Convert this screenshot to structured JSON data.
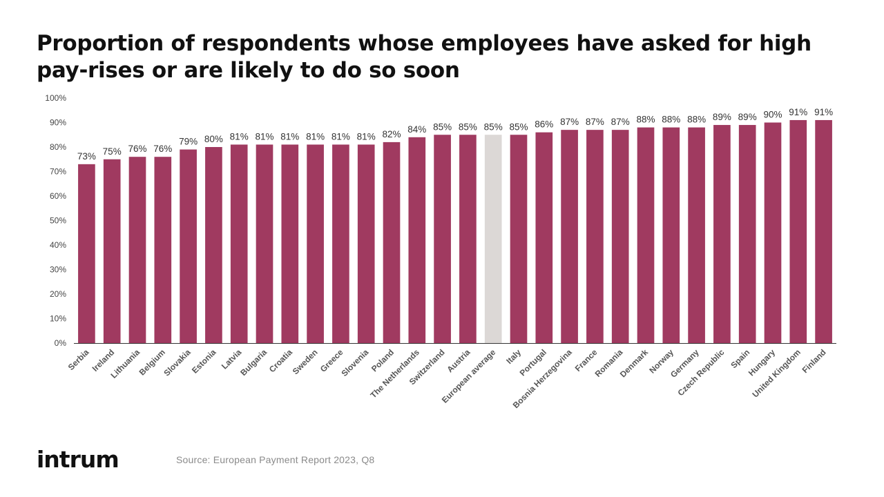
{
  "title": "Proportion of respondents whose employees have asked for high pay-rises or are likely to do so soon",
  "logo": "intrum",
  "source": "Source: European Payment Report 2023, Q8",
  "colors": {
    "bar": "#A03A60",
    "highlight": "#DCD8D6",
    "text": "#333333",
    "axis": "#333333"
  },
  "chart_data": {
    "type": "bar",
    "title": "Proportion of respondents whose employees have asked for high pay-rises or are likely to do so soon",
    "xlabel": "",
    "ylabel": "",
    "ylim": [
      0,
      100
    ],
    "yticks": [
      "0%",
      "10%",
      "20%",
      "30%",
      "40%",
      "50%",
      "60%",
      "70%",
      "80%",
      "90%",
      "100%"
    ],
    "grid": false,
    "highlight_category": "European average",
    "categories": [
      "Serbia",
      "Ireland",
      "Lithuania",
      "Belgium",
      "Slovakia",
      "Estonia",
      "Latvia",
      "Bulgaria",
      "Croatia",
      "Sweden",
      "Greece",
      "Slovenia",
      "Poland",
      "The Netherlands",
      "Switzerland",
      "Austria",
      "European average",
      "Italy",
      "Portugal",
      "Bosnia Herzegovina",
      "France",
      "Romania",
      "Denmark",
      "Norway",
      "Germany",
      "Czech Republic",
      "Spain",
      "Hungary",
      "United Kingdom",
      "Finland"
    ],
    "values": [
      73,
      75,
      76,
      76,
      79,
      80,
      81,
      81,
      81,
      81,
      81,
      81,
      82,
      84,
      85,
      85,
      85,
      85,
      86,
      87,
      87,
      87,
      88,
      88,
      88,
      89,
      89,
      90,
      91,
      91
    ],
    "data_labels": [
      "73%",
      "75%",
      "76%",
      "76%",
      "79%",
      "80%",
      "81%",
      "81%",
      "81%",
      "81%",
      "81%",
      "81%",
      "82%",
      "84%",
      "85%",
      "85%",
      "85%",
      "85%",
      "86%",
      "87%",
      "87%",
      "87%",
      "88%",
      "88%",
      "88%",
      "89%",
      "89%",
      "90%",
      "91%",
      "91%"
    ]
  }
}
